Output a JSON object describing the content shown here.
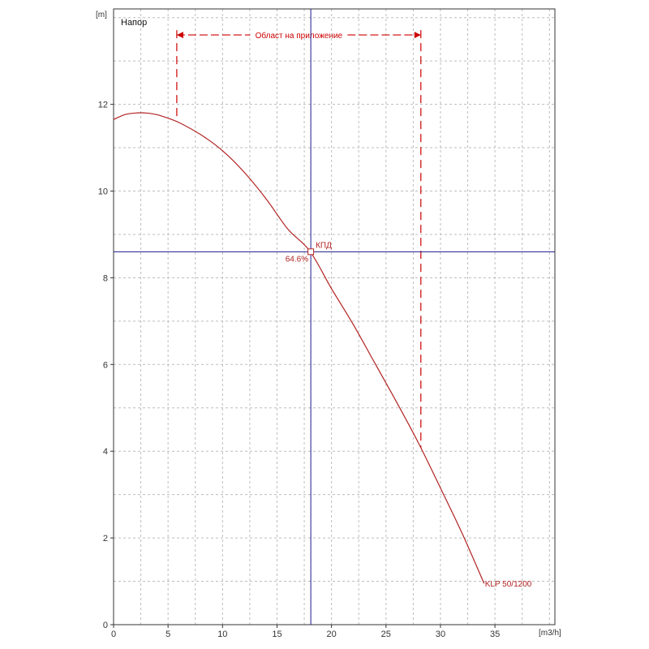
{
  "chart_data": {
    "type": "line",
    "title": "Напор",
    "xlabel": "[m3/h]",
    "ylabel": "[m]",
    "xlim": [
      0,
      40.5
    ],
    "ylim": [
      0,
      14.2
    ],
    "x_ticks": [
      0,
      5,
      10,
      15,
      20,
      25,
      30,
      35
    ],
    "y_ticks": [
      0,
      2,
      4,
      6,
      8,
      10,
      12
    ],
    "grid": true,
    "series": [
      {
        "name": "KLP 50/1200",
        "color": "#b22222",
        "x": [
          0,
          1,
          2,
          3,
          4,
          5,
          6,
          8,
          10,
          12,
          14,
          16,
          18,
          20,
          22,
          24,
          26,
          28,
          30,
          32,
          34
        ],
        "y": [
          11.65,
          11.76,
          11.8,
          11.8,
          11.76,
          11.68,
          11.58,
          11.3,
          10.93,
          10.43,
          9.82,
          9.12,
          8.62,
          7.75,
          6.92,
          6.02,
          5.12,
          4.18,
          3.15,
          2.1,
          0.95
        ]
      }
    ],
    "operating_point": {
      "x": 18.1,
      "y": 8.6,
      "label": "КПД",
      "value_label": "64.6%",
      "crosshair_color": "#1a1a8c"
    },
    "application_range": {
      "label": "Област на приложение",
      "x_start": 5.8,
      "x_end": 28.2,
      "y_level": 13.6,
      "color": "#cc0000"
    }
  }
}
